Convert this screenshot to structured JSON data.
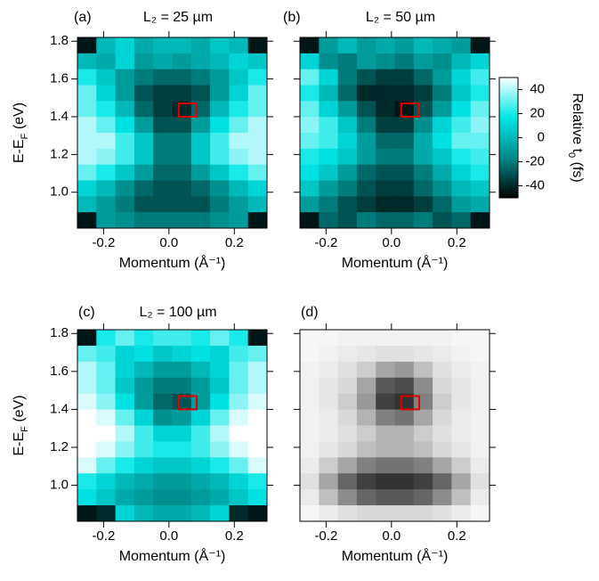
{
  "chart_data": [
    {
      "type": "heatmap",
      "panel": "(a)",
      "title": "L₂ = 25 µm",
      "xlabel": "Momentum (Å⁻¹)",
      "ylabel": {
        "text": "E-E",
        "sub": "F",
        "unit": " (eV)"
      },
      "xlim": [
        -0.28,
        0.3
      ],
      "ylim": [
        0.81,
        1.82
      ],
      "xticks": [
        -0.2,
        {
          "value": 0,
          "label": "0.0"
        },
        0.2
      ],
      "yticks": [
        {
          "value": 1,
          "label": "1.0"
        },
        1.2,
        1.4,
        1.6,
        1.8
      ],
      "zlim": [
        -50,
        50
      ],
      "colormap": [
        "#000000",
        "#008a8a",
        "#00e6e6",
        "#ffffff"
      ],
      "roi": {
        "x": [
          0.03,
          0.085
        ],
        "y": [
          1.4,
          1.47
        ],
        "color": "#e00000"
      },
      "z": [
        [
          -45,
          0,
          10,
          -5,
          0,
          0,
          -5,
          5,
          0,
          -45
        ],
        [
          0,
          -5,
          10,
          -10,
          -5,
          -10,
          -5,
          0,
          10,
          5
        ],
        [
          20,
          5,
          -10,
          -20,
          -25,
          -25,
          -20,
          -10,
          5,
          20
        ],
        [
          30,
          10,
          -10,
          -30,
          -35,
          -35,
          -30,
          -10,
          10,
          30
        ],
        [
          30,
          20,
          0,
          -25,
          -35,
          -40,
          -25,
          0,
          20,
          30
        ],
        [
          40,
          30,
          15,
          -10,
          -30,
          -30,
          -10,
          15,
          30,
          40
        ],
        [
          40,
          40,
          25,
          5,
          -20,
          -20,
          5,
          25,
          40,
          40
        ],
        [
          40,
          35,
          25,
          5,
          -20,
          -20,
          5,
          25,
          35,
          40
        ],
        [
          30,
          20,
          5,
          -10,
          -25,
          -25,
          -10,
          5,
          20,
          30
        ],
        [
          10,
          0,
          -15,
          -25,
          -30,
          -30,
          -25,
          -15,
          0,
          10
        ],
        [
          0,
          -10,
          -20,
          -30,
          -30,
          -30,
          -30,
          -20,
          -10,
          0
        ],
        [
          -45,
          -10,
          -15,
          -20,
          -20,
          -20,
          -20,
          -15,
          -10,
          -45
        ]
      ]
    },
    {
      "type": "heatmap",
      "panel": "(b)",
      "title": "L₂ = 50 µm",
      "xlabel": "Momentum (Å⁻¹)",
      "xlim": [
        -0.28,
        0.3
      ],
      "ylim": [
        0.81,
        1.82
      ],
      "xticks": [
        -0.2,
        {
          "value": 0,
          "label": "0.0"
        },
        0.2
      ],
      "yticks": [
        1,
        1.2,
        1.4,
        1.6,
        1.8
      ],
      "zlim": [
        -50,
        50
      ],
      "colormap": [
        "#000000",
        "#008a8a",
        "#00e6e6",
        "#ffffff"
      ],
      "roi": {
        "x": [
          0.03,
          0.085
        ],
        "y": [
          1.4,
          1.47
        ],
        "color": "#e00000"
      },
      "colorbar": {
        "label": {
          "text": "Relative t",
          "sub": "0",
          "unit": " (fs)"
        },
        "ticks": [
          40,
          20,
          0,
          -20,
          -40
        ]
      },
      "z": [
        [
          -45,
          -10,
          0,
          -10,
          -5,
          -10,
          0,
          -5,
          -10,
          -45
        ],
        [
          10,
          -15,
          -20,
          -10,
          -15,
          -20,
          -10,
          -15,
          0,
          10
        ],
        [
          30,
          10,
          -20,
          -30,
          -35,
          -35,
          -25,
          -10,
          10,
          25
        ],
        [
          20,
          0,
          -25,
          -40,
          -40,
          -40,
          -35,
          -20,
          5,
          20
        ],
        [
          30,
          10,
          -10,
          -30,
          -40,
          -45,
          -30,
          -10,
          15,
          30
        ],
        [
          35,
          25,
          5,
          -20,
          -35,
          -35,
          -15,
          10,
          25,
          35
        ],
        [
          30,
          25,
          10,
          -10,
          -25,
          -25,
          -5,
          15,
          30,
          30
        ],
        [
          20,
          15,
          5,
          -10,
          -20,
          -20,
          -5,
          5,
          20,
          25
        ],
        [
          15,
          5,
          -10,
          -25,
          -30,
          -30,
          -20,
          -5,
          10,
          20
        ],
        [
          5,
          -10,
          -20,
          -30,
          -35,
          -35,
          -25,
          -15,
          0,
          5
        ],
        [
          -10,
          -20,
          -30,
          -35,
          -40,
          -40,
          -35,
          -25,
          -10,
          -5
        ],
        [
          -45,
          -25,
          -30,
          -20,
          -25,
          -25,
          -20,
          -30,
          -25,
          -45
        ]
      ]
    },
    {
      "type": "heatmap",
      "panel": "(c)",
      "title": "L₂ = 100 µm",
      "xlabel": "Momentum (Å⁻¹)",
      "ylabel": {
        "text": "E-E",
        "sub": "F",
        "unit": " (eV)"
      },
      "xlim": [
        -0.28,
        0.3
      ],
      "ylim": [
        0.81,
        1.82
      ],
      "xticks": [
        -0.2,
        {
          "value": 0,
          "label": "0.0"
        },
        0.2
      ],
      "yticks": [
        {
          "value": 1,
          "label": "1.0"
        },
        1.2,
        1.4,
        1.6,
        1.8
      ],
      "zlim": [
        -50,
        50
      ],
      "colormap": [
        "#000000",
        "#008a8a",
        "#00e6e6",
        "#ffffff"
      ],
      "roi": {
        "x": [
          0.03,
          0.085
        ],
        "y": [
          1.4,
          1.47
        ],
        "color": "#e00000"
      },
      "z": [
        [
          -45,
          20,
          30,
          20,
          25,
          25,
          20,
          30,
          20,
          -45
        ],
        [
          30,
          25,
          10,
          15,
          5,
          10,
          15,
          10,
          25,
          30
        ],
        [
          40,
          30,
          10,
          0,
          -10,
          -10,
          0,
          10,
          30,
          40
        ],
        [
          40,
          30,
          5,
          -10,
          -20,
          -20,
          -10,
          5,
          30,
          40
        ],
        [
          45,
          35,
          15,
          -10,
          -25,
          -30,
          -10,
          15,
          35,
          45
        ],
        [
          50,
          45,
          30,
          10,
          -15,
          -10,
          10,
          30,
          45,
          50
        ],
        [
          50,
          50,
          40,
          25,
          10,
          10,
          25,
          40,
          50,
          50
        ],
        [
          50,
          45,
          35,
          25,
          20,
          20,
          25,
          35,
          45,
          50
        ],
        [
          45,
          30,
          20,
          10,
          5,
          5,
          10,
          20,
          30,
          45
        ],
        [
          20,
          10,
          0,
          -5,
          -10,
          -10,
          -5,
          0,
          10,
          20
        ],
        [
          15,
          5,
          -5,
          -10,
          -15,
          -15,
          -10,
          -5,
          5,
          15
        ],
        [
          -45,
          -40,
          10,
          0,
          -5,
          -5,
          0,
          10,
          -40,
          -45
        ]
      ]
    },
    {
      "type": "heatmap",
      "panel": "(d)",
      "xlabel": "Momentum (Å⁻¹)",
      "xlim": [
        -0.28,
        0.3
      ],
      "ylim": [
        0.81,
        1.82
      ],
      "xticks": [
        -0.2,
        {
          "value": 0,
          "label": "0.0"
        },
        0.2
      ],
      "yticks": [
        1,
        1.2,
        1.4,
        1.6,
        1.8
      ],
      "zlim": [
        0,
        100
      ],
      "colormap": [
        "#ffffff",
        "#000000"
      ],
      "roi": {
        "x": [
          0.03,
          0.085
        ],
        "y": [
          1.4,
          1.47
        ],
        "color": "#e00000"
      },
      "z": [
        [
          3,
          3,
          5,
          5,
          5,
          5,
          5,
          5,
          3,
          3
        ],
        [
          3,
          5,
          8,
          10,
          12,
          12,
          10,
          8,
          5,
          3
        ],
        [
          5,
          8,
          12,
          20,
          35,
          40,
          25,
          12,
          8,
          5
        ],
        [
          5,
          10,
          15,
          35,
          65,
          70,
          45,
          15,
          10,
          5
        ],
        [
          5,
          10,
          20,
          40,
          75,
          80,
          50,
          20,
          10,
          5
        ],
        [
          5,
          8,
          15,
          30,
          50,
          55,
          35,
          15,
          8,
          5
        ],
        [
          5,
          8,
          12,
          20,
          30,
          30,
          20,
          12,
          8,
          5
        ],
        [
          5,
          10,
          15,
          25,
          30,
          30,
          25,
          15,
          10,
          5
        ],
        [
          8,
          20,
          35,
          50,
          55,
          55,
          50,
          35,
          20,
          8
        ],
        [
          12,
          35,
          60,
          75,
          80,
          80,
          75,
          60,
          35,
          12
        ],
        [
          8,
          25,
          45,
          60,
          65,
          65,
          60,
          45,
          25,
          8
        ],
        [
          3,
          8,
          12,
          15,
          15,
          15,
          15,
          12,
          8,
          3
        ]
      ]
    }
  ]
}
